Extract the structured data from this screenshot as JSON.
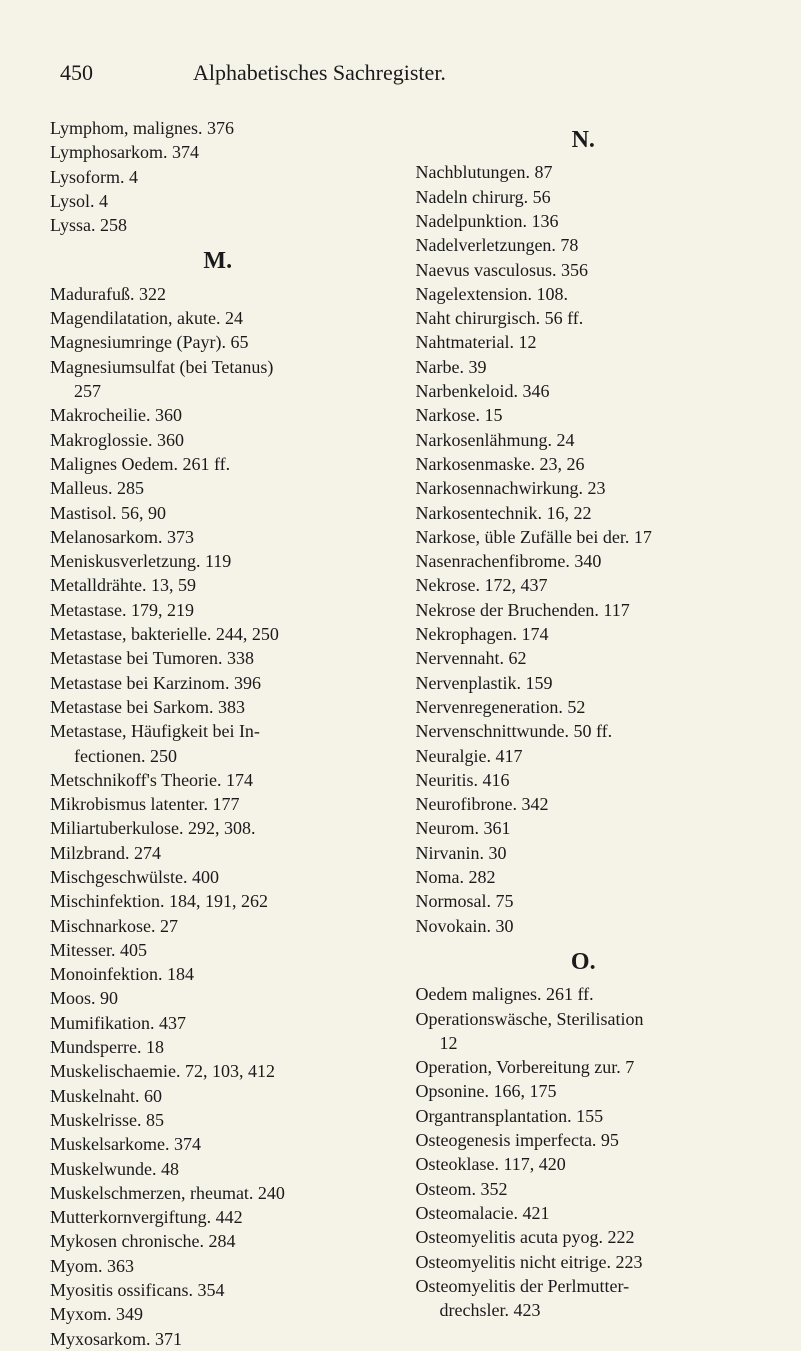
{
  "header": {
    "page_number": "450",
    "title": "Alphabetisches Sachregister."
  },
  "left_column": {
    "entries_1": [
      "Lymphom, malignes. 376",
      "Lymphosarkom. 374",
      "Lysoform. 4",
      "Lysol. 4",
      "Lyssa. 258"
    ],
    "section_m": "M.",
    "entries_m": [
      {
        "text": "Madurafuß. 322"
      },
      {
        "text": "Magendilatation, akute. 24"
      },
      {
        "text": "Magnesiumringe (Payr). 65"
      },
      {
        "text": "Magnesiumsulfat (bei Tetanus)"
      },
      {
        "text": "257",
        "indent": true
      },
      {
        "text": "Makrocheilie. 360"
      },
      {
        "text": "Makroglossie. 360"
      },
      {
        "text": "Malignes Oedem. 261 ff."
      },
      {
        "text": "Malleus. 285"
      },
      {
        "text": "Mastisol. 56, 90"
      },
      {
        "text": "Melanosarkom. 373"
      },
      {
        "text": "Meniskusverletzung. 119"
      },
      {
        "text": "Metalldrähte. 13, 59"
      },
      {
        "text": "Metastase. 179, 219"
      },
      {
        "text": "Metastase, bakterielle. 244, 250"
      },
      {
        "text": "Metastase bei Tumoren. 338"
      },
      {
        "text": "Metastase bei Karzinom. 396"
      },
      {
        "text": "Metastase bei Sarkom. 383"
      },
      {
        "text": "Metastase, Häufigkeit bei In-"
      },
      {
        "text": "fectionen. 250",
        "indent": true
      },
      {
        "text": "Metschnikoff's Theorie. 174"
      },
      {
        "text": "Mikrobismus latenter. 177"
      },
      {
        "text": "Miliartuberkulose. 292, 308."
      },
      {
        "text": "Milzbrand. 274"
      },
      {
        "text": "Mischgeschwülste. 400"
      },
      {
        "text": "Mischinfektion. 184, 191, 262"
      },
      {
        "text": "Mischnarkose. 27"
      },
      {
        "text": "Mitesser. 405"
      },
      {
        "text": "Monoinfektion. 184"
      },
      {
        "text": "Moos. 90"
      },
      {
        "text": "Mumifikation. 437"
      },
      {
        "text": "Mundsperre. 18"
      },
      {
        "text": "Muskelischaemie. 72, 103, 412"
      },
      {
        "text": "Muskelnaht. 60"
      },
      {
        "text": "Muskelrisse. 85"
      },
      {
        "text": "Muskelsarkome. 374"
      },
      {
        "text": "Muskelwunde. 48"
      },
      {
        "text": "Muskelschmerzen, rheumat. 240"
      },
      {
        "text": "Mutterkornvergiftung. 442"
      },
      {
        "text": "Mykosen chronische. 284"
      },
      {
        "text": "Myom. 363"
      },
      {
        "text": "Myositis ossificans. 354"
      },
      {
        "text": "Myxom. 349"
      },
      {
        "text": "Myxosarkom. 371"
      }
    ]
  },
  "right_column": {
    "section_n": "N.",
    "entries_n": [
      {
        "text": "Nachblutungen. 87"
      },
      {
        "text": "Nadeln chirurg. 56"
      },
      {
        "text": "Nadelpunktion. 136"
      },
      {
        "text": "Nadelverletzungen. 78"
      },
      {
        "text": "Naevus vasculosus. 356"
      },
      {
        "text": "Nagelextension. 108."
      },
      {
        "text": "Naht chirurgisch. 56 ff."
      },
      {
        "text": "Nahtmaterial. 12"
      },
      {
        "text": "Narbe. 39"
      },
      {
        "text": "Narbenkeloid. 346"
      },
      {
        "text": "Narkose. 15"
      },
      {
        "text": "Narkosenlähmung. 24"
      },
      {
        "text": "Narkosenmaske. 23, 26"
      },
      {
        "text": "Narkosennachwirkung. 23"
      },
      {
        "text": "Narkosentechnik. 16, 22"
      },
      {
        "text": "Narkose, üble Zufälle bei der. 17"
      },
      {
        "text": "Nasenrachenfibrome. 340"
      },
      {
        "text": "Nekrose. 172, 437"
      },
      {
        "text": "Nekrose der Bruchenden. 117"
      },
      {
        "text": "Nekrophagen. 174"
      },
      {
        "text": "Nervennaht. 62"
      },
      {
        "text": "Nervenplastik. 159"
      },
      {
        "text": "Nervenregeneration. 52"
      },
      {
        "text": "Nervenschnittwunde. 50 ff."
      },
      {
        "text": "Neuralgie. 417"
      },
      {
        "text": "Neuritis. 416"
      },
      {
        "text": "Neurofibrone. 342"
      },
      {
        "text": "Neurom. 361"
      },
      {
        "text": "Nirvanin. 30"
      },
      {
        "text": "Noma. 282"
      },
      {
        "text": "Normosal. 75"
      },
      {
        "text": "Novokain. 30"
      }
    ],
    "section_o": "O.",
    "entries_o": [
      {
        "text": "Oedem malignes. 261 ff."
      },
      {
        "text": "Operationswäsche, Sterilisation"
      },
      {
        "text": "12",
        "indent": true
      },
      {
        "text": "Operation, Vorbereitung zur. 7"
      },
      {
        "text": "Opsonine. 166, 175"
      },
      {
        "text": "Organtransplantation. 155"
      },
      {
        "text": "Osteogenesis imperfecta. 95"
      },
      {
        "text": "Osteoklase. 117, 420"
      },
      {
        "text": "Osteom. 352"
      },
      {
        "text": "Osteomalacie. 421"
      },
      {
        "text": "Osteomyelitis acuta pyog. 222"
      },
      {
        "text": "Osteomyelitis nicht eitrige. 223"
      },
      {
        "text": "Osteomyelitis der Perlmutter-"
      },
      {
        "text": "drechsler. 423",
        "indent": true
      }
    ]
  },
  "styling": {
    "background_color": "#f5f2e8",
    "text_color": "#1a1a1a",
    "font_family": "Georgia, serif",
    "body_font_size": 18,
    "header_font_size": 22,
    "section_font_size": 24,
    "line_height": 1.35
  }
}
